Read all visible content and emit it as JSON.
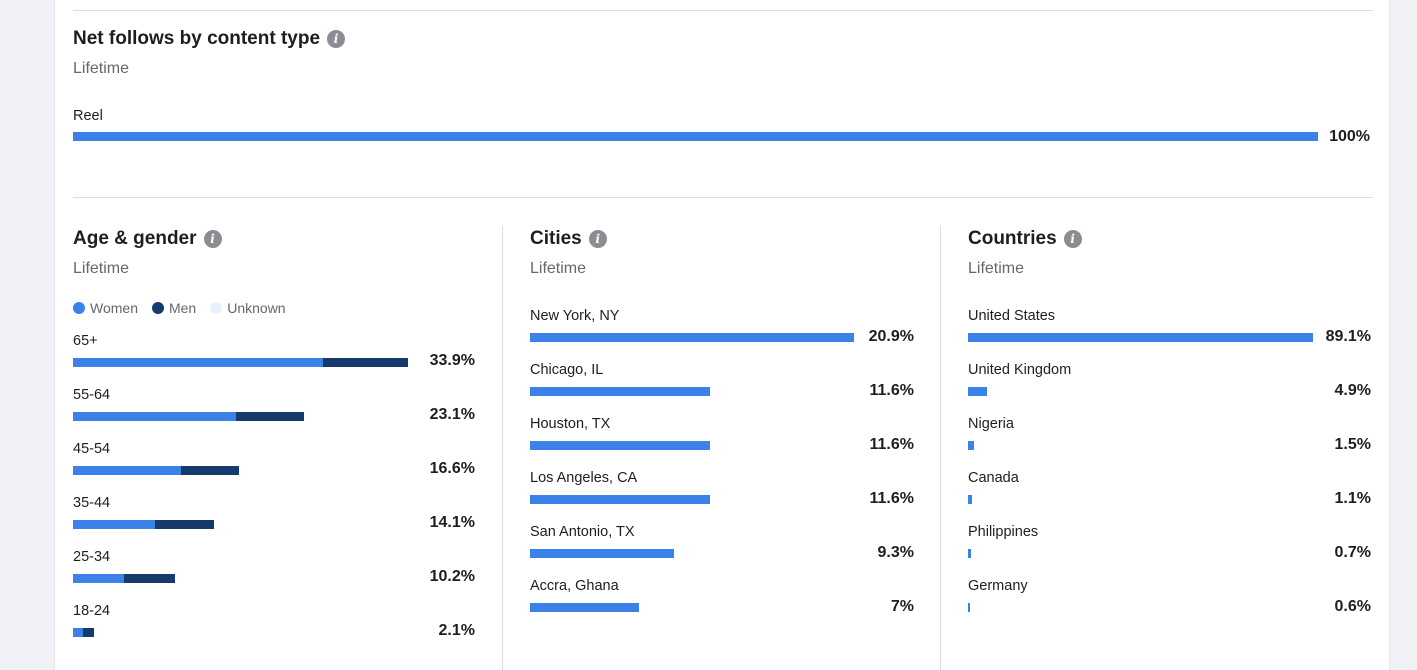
{
  "content_type": {
    "title": "Net follows by content type",
    "subtitle": "Lifetime",
    "items": [
      {
        "label": "Reel",
        "value": "100%",
        "fraction": 1.0
      }
    ]
  },
  "age_gender": {
    "title": "Age & gender",
    "subtitle": "Lifetime",
    "legend": [
      {
        "label": "Women",
        "color": "#3b82e8"
      },
      {
        "label": "Men",
        "color": "#163a6b"
      },
      {
        "label": "Unknown",
        "color": "#e7f0fb"
      }
    ],
    "rows": [
      {
        "label": "65+",
        "value": "33.9%",
        "women": 25.1,
        "men": 8.5
      },
      {
        "label": "55-64",
        "value": "23.1%",
        "women": 16.3,
        "men": 6.8
      },
      {
        "label": "45-54",
        "value": "16.6%",
        "women": 10.8,
        "men": 5.8
      },
      {
        "label": "35-44",
        "value": "14.1%",
        "women": 8.2,
        "men": 5.9
      },
      {
        "label": "25-34",
        "value": "10.2%",
        "women": 5.1,
        "men": 5.1
      },
      {
        "label": "18-24",
        "value": "2.1%",
        "women": 1.0,
        "men": 1.1
      }
    ]
  },
  "cities": {
    "title": "Cities",
    "subtitle": "Lifetime",
    "rows": [
      {
        "label": "New York, NY",
        "value": "20.9%",
        "pct": 20.9
      },
      {
        "label": "Chicago, IL",
        "value": "11.6%",
        "pct": 11.6
      },
      {
        "label": "Houston, TX",
        "value": "11.6%",
        "pct": 11.6
      },
      {
        "label": "Los Angeles, CA",
        "value": "11.6%",
        "pct": 11.6
      },
      {
        "label": "San Antonio, TX",
        "value": "9.3%",
        "pct": 9.3
      },
      {
        "label": "Accra, Ghana",
        "value": "7%",
        "pct": 7.0
      }
    ]
  },
  "countries": {
    "title": "Countries",
    "subtitle": "Lifetime",
    "rows": [
      {
        "label": "United States",
        "value": "89.1%",
        "pct": 89.1
      },
      {
        "label": "United Kingdom",
        "value": "4.9%",
        "pct": 4.9
      },
      {
        "label": "Nigeria",
        "value": "1.5%",
        "pct": 1.5
      },
      {
        "label": "Canada",
        "value": "1.1%",
        "pct": 1.1
      },
      {
        "label": "Philippines",
        "value": "0.7%",
        "pct": 0.7
      },
      {
        "label": "Germany",
        "value": "0.6%",
        "pct": 0.6
      }
    ]
  }
}
